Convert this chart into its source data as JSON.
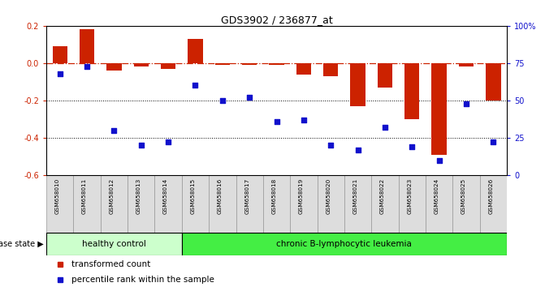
{
  "title": "GDS3902 / 236877_at",
  "samples": [
    "GSM658010",
    "GSM658011",
    "GSM658012",
    "GSM658013",
    "GSM658014",
    "GSM658015",
    "GSM658016",
    "GSM658017",
    "GSM658018",
    "GSM658019",
    "GSM658020",
    "GSM658021",
    "GSM658022",
    "GSM658023",
    "GSM658024",
    "GSM658025",
    "GSM658026"
  ],
  "bar_values": [
    0.09,
    0.18,
    -0.04,
    -0.02,
    -0.03,
    0.13,
    -0.01,
    -0.01,
    -0.01,
    -0.06,
    -0.07,
    -0.23,
    -0.13,
    -0.3,
    -0.49,
    -0.02,
    -0.2
  ],
  "blue_values": [
    68,
    73,
    30,
    20,
    22,
    60,
    50,
    52,
    36,
    37,
    20,
    17,
    32,
    19,
    10,
    48,
    22
  ],
  "ylim_left": [
    -0.6,
    0.2
  ],
  "ylim_right": [
    0,
    100
  ],
  "yticks_left": [
    -0.6,
    -0.4,
    -0.2,
    0.0,
    0.2
  ],
  "yticks_right": [
    0,
    25,
    50,
    75,
    100
  ],
  "bar_color": "#cc2200",
  "blue_color": "#1111cc",
  "hline_color": "#cc2200",
  "healthy_count": 5,
  "group_labels": [
    "healthy control",
    "chronic B-lymphocytic leukemia"
  ],
  "healthy_color": "#ccffcc",
  "chronic_color": "#44ee44",
  "tickbox_color": "#dddddd",
  "disease_state_label": "disease state",
  "legend_bar": "transformed count",
  "legend_dot": "percentile rank within the sample"
}
